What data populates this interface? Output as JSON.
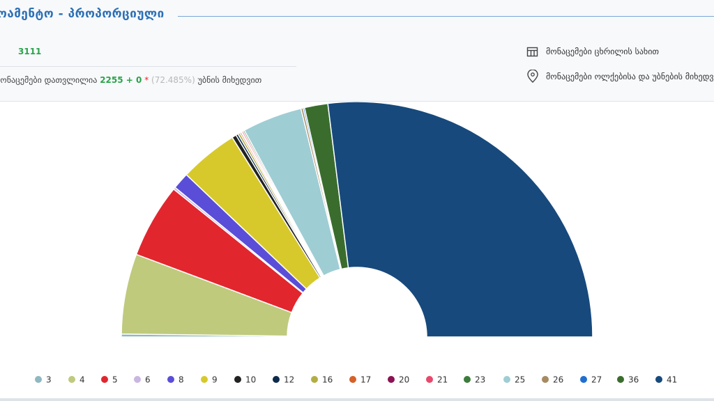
{
  "header": {
    "title": "ოამენტო - პროპორციული",
    "total": "3111",
    "counted_label": "მონაცემები დათვლილია",
    "counted": "2255 + 0",
    "asterisk": "*",
    "percent": "(72.485%)",
    "by": "უბნის მიხედვით"
  },
  "links": [
    "მონაცემები ცხრილის სახით",
    "მონაცემები ოლქებისა და უბნების მიხედვით"
  ],
  "chart_data": {
    "type": "pie",
    "categories": [
      "3",
      "4",
      "5",
      "6",
      "8",
      "9",
      "10",
      "12",
      "16",
      "17",
      "20",
      "21",
      "23",
      "25",
      "26",
      "27",
      "36",
      "41"
    ],
    "values": [
      0.4,
      11.0,
      10.2,
      0.3,
      2.3,
      8.0,
      0.6,
      0.3,
      0.3,
      0.2,
      0.1,
      0.2,
      0.2,
      8.2,
      0.3,
      0.2,
      3.2,
      53.9
    ],
    "colors": [
      "#8fb8c0",
      "#bfca7d",
      "#e2262e",
      "#c9b6e2",
      "#5a4ed8",
      "#d7c92b",
      "#222222",
      "#0c2a4b",
      "#b3ae43",
      "#d6612b",
      "#8b1152",
      "#e8496a",
      "#3c7c3a",
      "#9fcdd4",
      "#a68b61",
      "#1f6fd1",
      "#3a6d2d",
      "#17497c"
    ]
  }
}
